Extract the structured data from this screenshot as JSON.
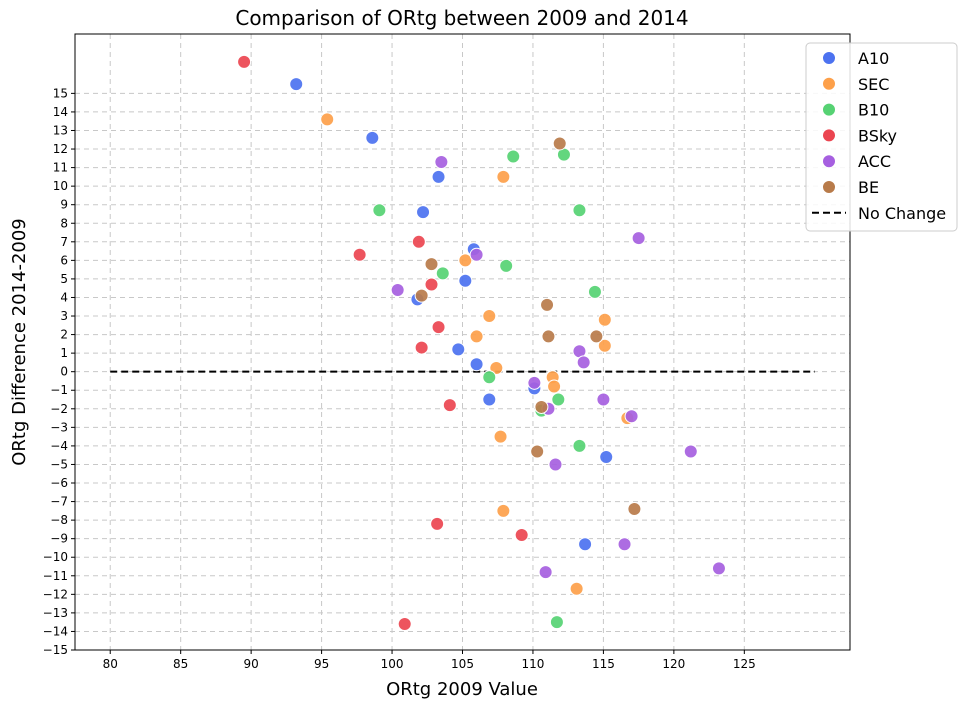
{
  "chart_data": {
    "type": "scatter",
    "title": "Comparison of ORtg between 2009 and 2014",
    "xlabel": "ORtg 2009 Value",
    "ylabel": "ORtg Difference 2014-2009",
    "xlim": [
      77.5,
      132.5
    ],
    "ylim": [
      -15,
      18.2
    ],
    "xticks": [
      80,
      85,
      90,
      95,
      100,
      105,
      110,
      115,
      120,
      125
    ],
    "yticks": [
      -15,
      -14,
      -13,
      -12,
      -11,
      -10,
      -9,
      -8,
      -7,
      -6,
      -5,
      -4,
      -3,
      -2,
      -1,
      0,
      1,
      2,
      3,
      4,
      5,
      6,
      7,
      8,
      9,
      10,
      11,
      12,
      13,
      14,
      15
    ],
    "grid": true,
    "legend_position": "top-right",
    "reference_line": {
      "label": "No Change",
      "x": [
        80,
        130
      ],
      "y": 0,
      "color": "#000000"
    },
    "series": [
      {
        "name": "A10",
        "color": "#4c72f0",
        "points": [
          [
            93.2,
            15.5
          ],
          [
            98.6,
            12.6
          ],
          [
            103.3,
            10.5
          ],
          [
            102.2,
            8.6
          ],
          [
            105.8,
            6.6
          ],
          [
            105.2,
            4.9
          ],
          [
            101.8,
            3.9
          ],
          [
            104.7,
            1.2
          ],
          [
            106.0,
            0.4
          ],
          [
            110.1,
            -0.9
          ],
          [
            106.9,
            -1.5
          ],
          [
            115.2,
            -4.6
          ],
          [
            113.7,
            -9.3
          ]
        ]
      },
      {
        "name": "SEC",
        "color": "#fda04a",
        "points": [
          [
            95.4,
            13.6
          ],
          [
            107.9,
            10.5
          ],
          [
            105.2,
            6.0
          ],
          [
            106.9,
            3.0
          ],
          [
            115.1,
            2.8
          ],
          [
            106.0,
            1.9
          ],
          [
            115.1,
            1.4
          ],
          [
            107.4,
            0.2
          ],
          [
            111.4,
            -0.3
          ],
          [
            111.5,
            -0.8
          ],
          [
            116.7,
            -2.5
          ],
          [
            107.7,
            -3.5
          ],
          [
            107.9,
            -7.5
          ],
          [
            113.1,
            -11.7
          ]
        ]
      },
      {
        "name": "B10",
        "color": "#56d273",
        "points": [
          [
            108.6,
            11.6
          ],
          [
            112.2,
            11.7
          ],
          [
            99.1,
            8.7
          ],
          [
            113.3,
            8.7
          ],
          [
            108.1,
            5.7
          ],
          [
            103.6,
            5.3
          ],
          [
            114.4,
            4.3
          ],
          [
            106.9,
            -0.3
          ],
          [
            111.8,
            -1.5
          ],
          [
            110.6,
            -2.1
          ],
          [
            113.3,
            -4.0
          ],
          [
            111.7,
            -13.5
          ]
        ]
      },
      {
        "name": "BSky",
        "color": "#eb4550",
        "points": [
          [
            89.5,
            16.7
          ],
          [
            101.9,
            7.0
          ],
          [
            97.7,
            6.3
          ],
          [
            102.8,
            4.7
          ],
          [
            103.3,
            2.4
          ],
          [
            102.1,
            1.3
          ],
          [
            104.1,
            -1.8
          ],
          [
            103.2,
            -8.2
          ],
          [
            109.2,
            -8.8
          ],
          [
            100.9,
            -13.6
          ]
        ]
      },
      {
        "name": "ACC",
        "color": "#a65fe0",
        "points": [
          [
            103.5,
            11.3
          ],
          [
            117.5,
            7.2
          ],
          [
            106.0,
            6.3
          ],
          [
            100.4,
            4.4
          ],
          [
            113.3,
            1.1
          ],
          [
            113.6,
            0.5
          ],
          [
            110.1,
            -0.6
          ],
          [
            111.1,
            -2.0
          ],
          [
            115.0,
            -1.5
          ],
          [
            117.0,
            -2.4
          ],
          [
            111.6,
            -5.0
          ],
          [
            121.2,
            -4.3
          ],
          [
            116.5,
            -9.3
          ],
          [
            110.9,
            -10.8
          ],
          [
            123.2,
            -10.6
          ]
        ]
      },
      {
        "name": "BE",
        "color": "#b87b4a",
        "points": [
          [
            111.9,
            12.3
          ],
          [
            102.8,
            5.8
          ],
          [
            102.1,
            4.1
          ],
          [
            111.0,
            3.6
          ],
          [
            111.1,
            1.9
          ],
          [
            114.5,
            1.9
          ],
          [
            110.6,
            -1.9
          ],
          [
            110.3,
            -4.3
          ],
          [
            117.2,
            -7.4
          ]
        ]
      }
    ]
  }
}
